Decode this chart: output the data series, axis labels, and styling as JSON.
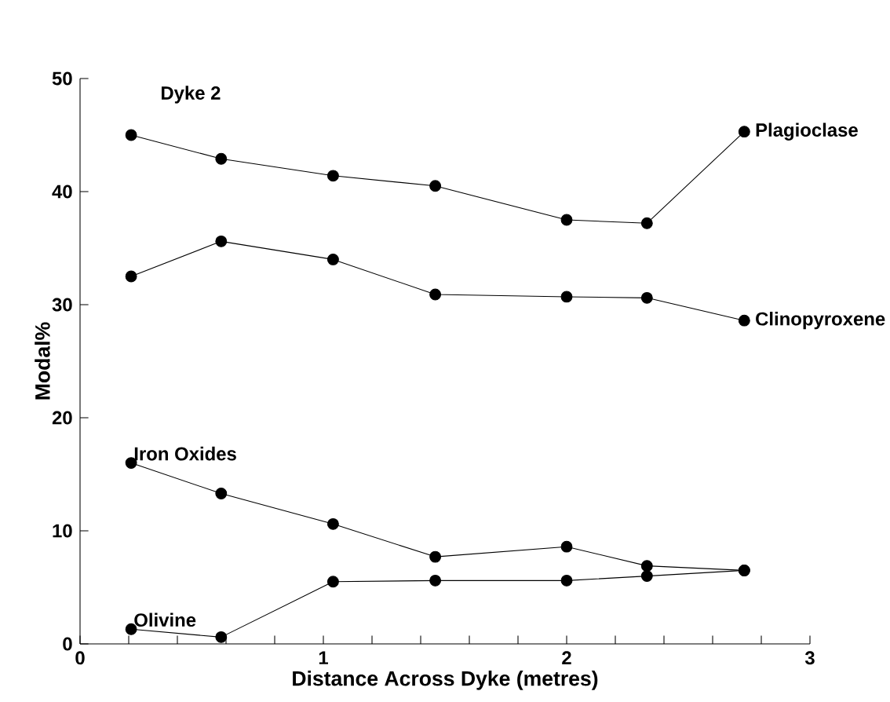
{
  "chart_data": {
    "type": "line",
    "title": "Dyke 2",
    "xlabel": "Distance  Across  Dyke (metres)",
    "ylabel": "Modal%",
    "xlim": [
      0,
      3
    ],
    "ylim": [
      0,
      50
    ],
    "xticks": [
      0,
      {
        "value": 0.2,
        "label": null
      },
      {
        "value": 0.4,
        "label": null
      },
      {
        "value": 0.6,
        "label": null
      },
      {
        "value": 0.8,
        "label": null
      },
      1,
      {
        "value": 1.2,
        "label": null
      },
      {
        "value": 1.4,
        "label": null
      },
      {
        "value": 1.6,
        "label": null
      },
      {
        "value": 1.8,
        "label": null
      },
      2,
      {
        "value": 2.2,
        "label": null
      },
      {
        "value": 2.4,
        "label": null
      },
      {
        "value": 2.6,
        "label": null
      },
      {
        "value": 2.8,
        "label": null
      },
      3
    ],
    "yticks": [
      0,
      10,
      20,
      30,
      40,
      50
    ],
    "x": [
      0.21,
      0.58,
      1.04,
      1.46,
      2.0,
      2.33,
      2.73
    ],
    "marker": "circle",
    "line_style": "solid",
    "grid": false,
    "legend": false,
    "series": [
      {
        "name": "Plagioclase",
        "color": "#000000",
        "values": [
          45.0,
          42.9,
          41.4,
          40.5,
          37.5,
          37.2,
          45.3
        ]
      },
      {
        "name": "Clinopyroxene",
        "color": "#000000",
        "values": [
          32.5,
          35.6,
          34.0,
          30.9,
          30.7,
          30.6,
          28.6
        ]
      },
      {
        "name": "Iron Oxides",
        "color": "#000000",
        "values": [
          16.0,
          13.3,
          10.6,
          7.7,
          8.6,
          6.9,
          6.5
        ]
      },
      {
        "name": "Olivine",
        "color": "#000000",
        "values": [
          1.3,
          0.6,
          5.5,
          5.6,
          5.6,
          6.0,
          6.5
        ]
      }
    ]
  }
}
